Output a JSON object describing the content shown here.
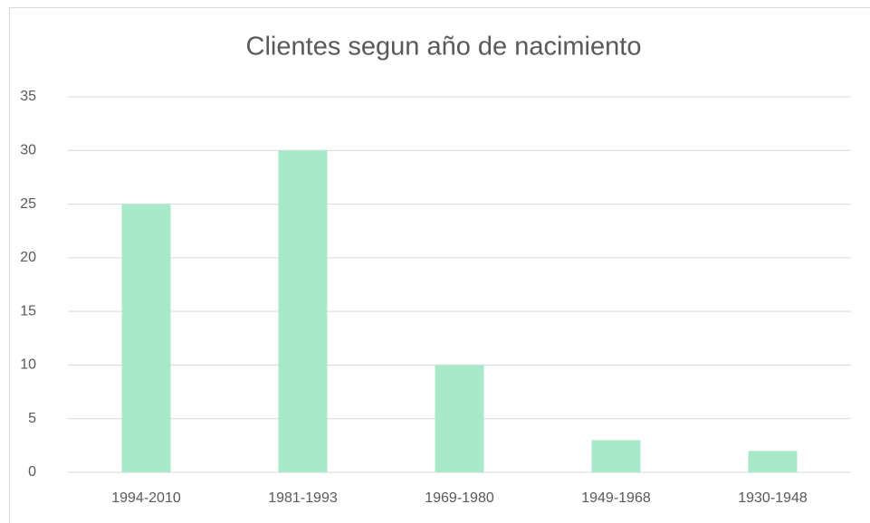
{
  "chart_data": {
    "type": "bar",
    "title": "Clientes segun año de nacimiento",
    "categories": [
      "1994-2010",
      "1981-1993",
      "1969-1980",
      "1949-1968",
      "1930-1948"
    ],
    "values": [
      25,
      30,
      10,
      3,
      2
    ],
    "color": "#a8e9c9",
    "ylim": [
      0,
      35
    ],
    "yticks": [
      0,
      5,
      10,
      15,
      20,
      25,
      30,
      35
    ],
    "grid": true
  }
}
